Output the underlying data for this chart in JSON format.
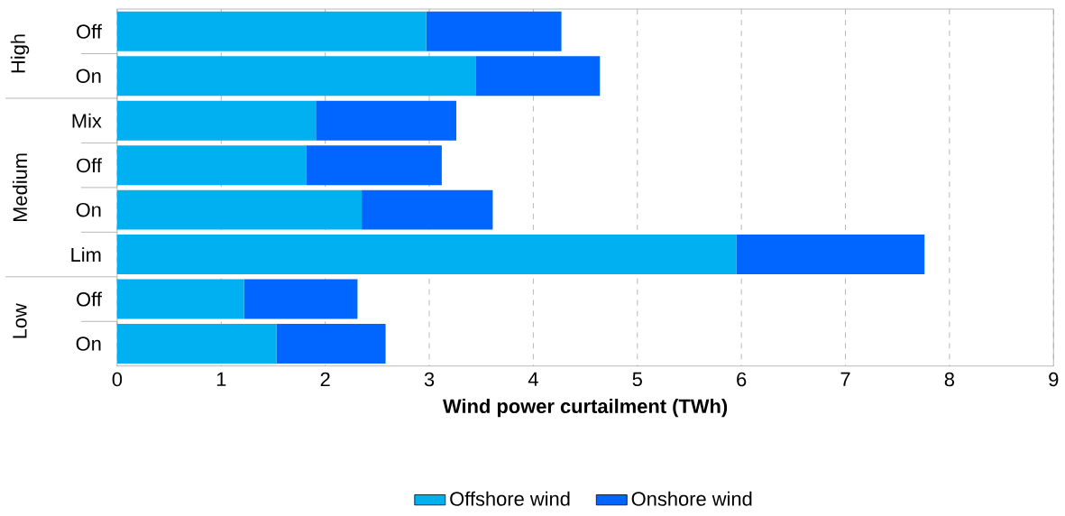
{
  "chart_data": {
    "type": "bar",
    "orientation": "horizontal",
    "stacked": true,
    "xlabel": "Wind power curtailment (TWh)",
    "categories": [
      "Off",
      "On",
      "Mix",
      "Off",
      "On",
      "Lim",
      "Off",
      "On"
    ],
    "annotations": [
      "High",
      "Medium",
      "Low"
    ],
    "series": [
      {
        "name": "Offshore wind",
        "color": "#00b0f0",
        "values": [
          2.97,
          3.45,
          1.91,
          1.82,
          2.35,
          5.95,
          1.22,
          1.53
        ]
      },
      {
        "name": "Onshore wind",
        "color": "#0066ff",
        "values": [
          1.3,
          1.19,
          1.35,
          1.3,
          1.26,
          1.81,
          1.09,
          1.05
        ]
      }
    ],
    "xlim": [
      0,
      9
    ],
    "xticks": [
      0,
      1,
      2,
      3,
      4,
      5,
      6,
      7,
      8,
      9
    ],
    "grid": "x",
    "legend": "bottom"
  }
}
